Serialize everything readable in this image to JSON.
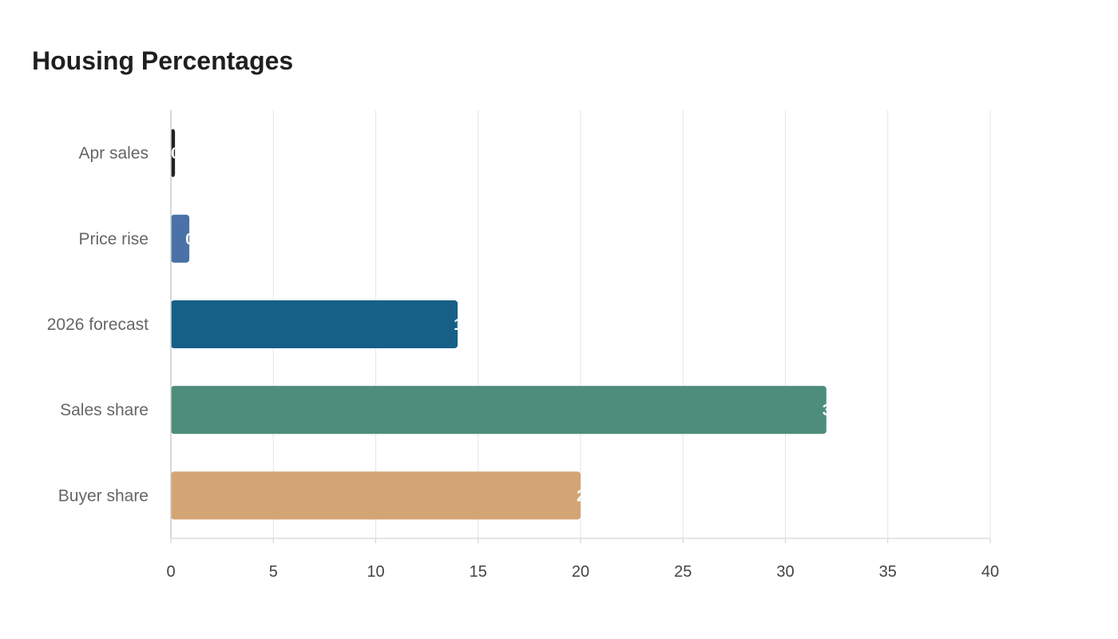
{
  "chart_data": {
    "type": "bar",
    "orientation": "horizontal",
    "title": "Housing Percentages",
    "xlabel": "",
    "ylabel": "",
    "categories": [
      "Apr sales",
      "Price rise",
      "2026 forecast",
      "Sales share",
      "Buyer share"
    ],
    "values": [
      0.2,
      0.9,
      14,
      32,
      20
    ],
    "colors": [
      "#222222",
      "#4a72a8",
      "#166088",
      "#4e8d7c",
      "#d4a574"
    ],
    "xlim": [
      0,
      40
    ],
    "xticks": [
      0,
      5,
      10,
      15,
      20,
      25,
      30,
      35,
      40
    ],
    "grid": true,
    "legend": false
  }
}
